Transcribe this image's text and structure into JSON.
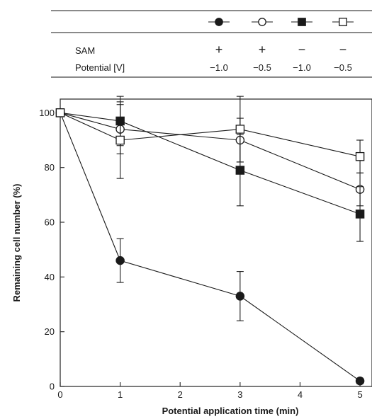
{
  "legend_table": {
    "row_labels": {
      "sam": "SAM",
      "potential": "Potential [V]"
    },
    "columns": [
      {
        "series": 0,
        "sam": "+",
        "potential": "−1.0"
      },
      {
        "series": 1,
        "sam": "+",
        "potential": "−0.5"
      },
      {
        "series": 2,
        "sam": "−",
        "potential": "−1.0"
      },
      {
        "series": 3,
        "sam": "−",
        "potential": "−0.5"
      }
    ]
  },
  "chart_data": {
    "type": "line",
    "xlabel": "Potential application time (min)",
    "ylabel": "Remaining cell number (%)",
    "xlim": [
      0,
      5.2
    ],
    "ylim": [
      0,
      105
    ],
    "xticks": [
      0,
      1,
      2,
      3,
      4,
      5
    ],
    "yticks": [
      0,
      20,
      40,
      60,
      80,
      100
    ],
    "x": [
      0,
      1,
      3,
      5
    ],
    "grid": false,
    "legend": "table above plot",
    "color": "#1a1a1a",
    "series": [
      {
        "marker": "filled-circle",
        "values": [
          100,
          46,
          33,
          2
        ],
        "err": [
          0,
          8,
          9,
          1
        ]
      },
      {
        "marker": "open-circle",
        "values": [
          100,
          94,
          90,
          72
        ],
        "err": [
          0,
          9,
          8,
          6
        ]
      },
      {
        "marker": "filled-square",
        "values": [
          100,
          97,
          79,
          63
        ],
        "err": [
          0,
          9,
          13,
          10
        ]
      },
      {
        "marker": "open-square",
        "values": [
          100,
          90,
          94,
          84
        ],
        "err": [
          0,
          14,
          12,
          6
        ]
      }
    ]
  }
}
